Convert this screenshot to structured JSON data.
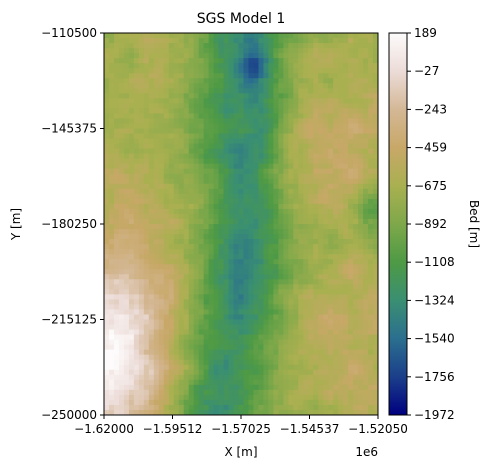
{
  "chart_data": {
    "type": "heatmap",
    "title": "SGS Model 1",
    "xlabel": "X [m]",
    "ylabel": "Y [m]",
    "x_offset_label": "1e6",
    "xlim": [
      -1.62,
      -1.5205
    ],
    "ylim": [
      -250000,
      -110500
    ],
    "x_ticks": [
      "−1.62000",
      "−1.59512",
      "−1.57025",
      "−1.54537",
      "−1.52050"
    ],
    "y_ticks": [
      "−110500",
      "−145375",
      "−180250",
      "−215125",
      "−250000"
    ],
    "colorbar": {
      "label": "Bed [m]",
      "range": [
        -1972,
        189
      ],
      "ticks": [
        "189",
        "−27",
        "−243",
        "−459",
        "−675",
        "−892",
        "−1108",
        "−1324",
        "−1540",
        "−1756",
        "−1972"
      ],
      "colormap": "gist_earth",
      "stops": [
        "#000080",
        "#1b3f8a",
        "#2b6f8f",
        "#3a8f72",
        "#4e9a45",
        "#7ea84a",
        "#a9b050",
        "#c8a868",
        "#d4b896",
        "#ecdcd8",
        "#fdfbfb"
      ]
    },
    "grid": false
  }
}
